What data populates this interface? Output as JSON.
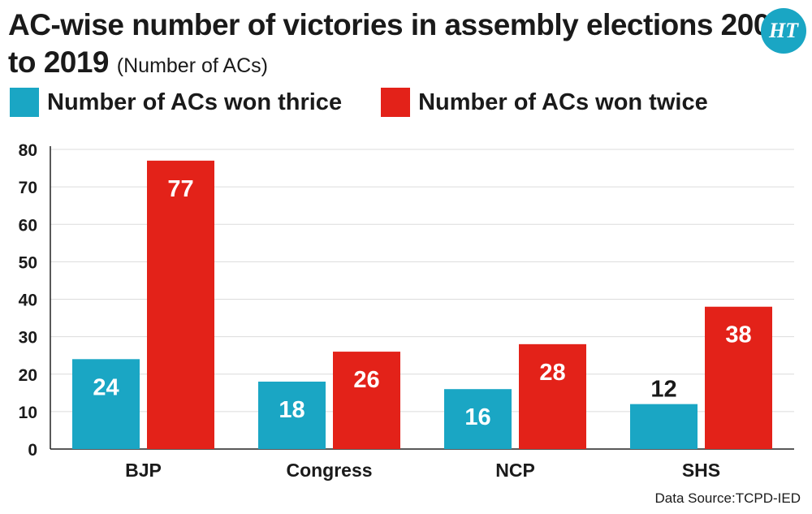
{
  "title": {
    "main": "AC-wise number of victories in assembly elections 2009 to 2019",
    "sub": "(Number of ACs)"
  },
  "logo": {
    "text": "HT",
    "color": "#1aa6c4"
  },
  "source": "Data Source:TCPD-IED",
  "chart_data": {
    "type": "bar",
    "title": "AC-wise number of victories in assembly elections 2009 to 2019",
    "subtitle": "(Number of ACs)",
    "categories": [
      "BJP",
      "Congress",
      "NCP",
      "SHS"
    ],
    "series": [
      {
        "name": "Number of ACs won thrice",
        "values": [
          24,
          18,
          16,
          12
        ],
        "color": "#1aa6c4"
      },
      {
        "name": "Number of ACs won twice",
        "values": [
          77,
          26,
          28,
          38
        ],
        "color": "#e32219"
      }
    ],
    "yticks": [
      0,
      10,
      20,
      30,
      40,
      50,
      60,
      70,
      80
    ],
    "ylim": [
      0,
      80
    ],
    "xlabel": "",
    "ylabel": "",
    "grid": true,
    "legend": "top-left"
  }
}
